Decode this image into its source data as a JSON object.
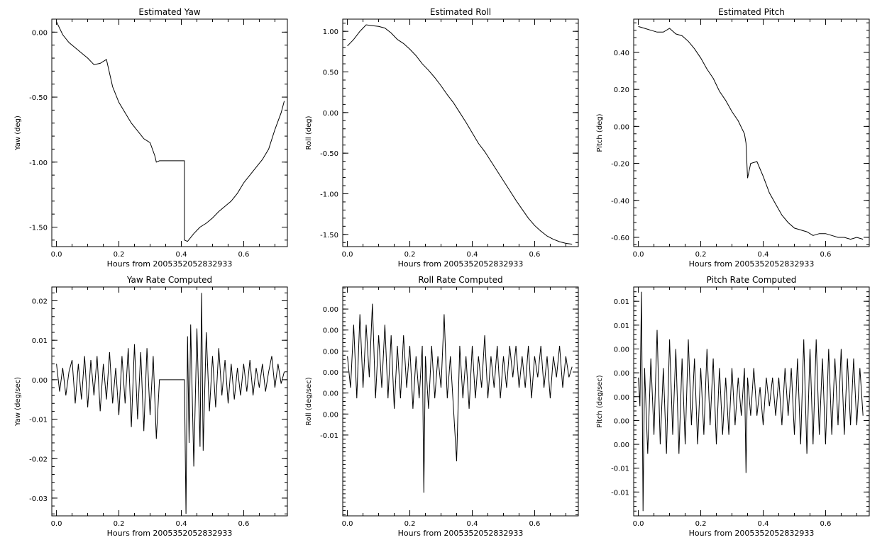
{
  "chart_data": [
    {
      "type": "line",
      "title": "Estimated Yaw",
      "xlabel": "Hours from 2005352052832933",
      "ylabel": "Yaw (deg)",
      "xlim": [
        -0.015,
        0.74
      ],
      "ylim": [
        -1.65,
        0.1
      ],
      "xticks": [
        0.0,
        0.2,
        0.4,
        0.6
      ],
      "xtick_labels": [
        "0.0",
        "0.2",
        "0.4",
        "0.6"
      ],
      "yticks": [
        0.0,
        -0.5,
        -1.0,
        -1.5
      ],
      "ytick_labels": [
        "0.00",
        "-0.50",
        "-1.00",
        "-1.50"
      ],
      "color": "#000000",
      "series": [
        {
          "x": [
            0.0,
            0.02,
            0.04,
            0.06,
            0.08,
            0.1,
            0.12,
            0.14,
            0.16,
            0.18,
            0.2,
            0.22,
            0.24,
            0.26,
            0.28,
            0.3,
            0.315,
            0.32,
            0.33,
            0.41,
            0.41,
            0.42,
            0.44,
            0.46,
            0.48,
            0.5,
            0.52,
            0.54,
            0.56,
            0.58,
            0.6,
            0.62,
            0.64,
            0.66,
            0.68,
            0.7,
            0.72,
            0.73
          ],
          "values": [
            0.08,
            -0.02,
            -0.08,
            -0.12,
            -0.16,
            -0.2,
            -0.25,
            -0.24,
            -0.21,
            -0.42,
            -0.54,
            -0.62,
            -0.7,
            -0.76,
            -0.82,
            -0.85,
            -0.95,
            -1.0,
            -0.99,
            -0.99,
            -1.6,
            -1.61,
            -1.55,
            -1.5,
            -1.47,
            -1.43,
            -1.38,
            -1.34,
            -1.3,
            -1.24,
            -1.16,
            -1.1,
            -1.04,
            -0.98,
            -0.9,
            -0.75,
            -0.62,
            -0.53
          ]
        }
      ]
    },
    {
      "type": "line",
      "title": "Estimated Roll",
      "xlabel": "Hours from 2005352052832933",
      "ylabel": "Roll (deg)",
      "xlim": [
        -0.015,
        0.74
      ],
      "ylim": [
        -1.65,
        1.15
      ],
      "xticks": [
        0.0,
        0.2,
        0.4,
        0.6
      ],
      "xtick_labels": [
        "0.0",
        "0.2",
        "0.4",
        "0.6"
      ],
      "yticks": [
        1.0,
        0.5,
        0.0,
        -0.5,
        -1.0,
        -1.5
      ],
      "ytick_labels": [
        "1.00",
        "0.50",
        "0.00",
        "-0.50",
        "-1.00",
        "-1.50"
      ],
      "color": "#000000",
      "series": [
        {
          "x": [
            0.0,
            0.02,
            0.04,
            0.06,
            0.08,
            0.1,
            0.12,
            0.14,
            0.16,
            0.18,
            0.2,
            0.22,
            0.24,
            0.26,
            0.28,
            0.3,
            0.32,
            0.34,
            0.36,
            0.38,
            0.4,
            0.42,
            0.44,
            0.46,
            0.48,
            0.5,
            0.52,
            0.54,
            0.56,
            0.58,
            0.6,
            0.62,
            0.64,
            0.66,
            0.68,
            0.7,
            0.72
          ],
          "values": [
            0.82,
            0.9,
            1.0,
            1.08,
            1.07,
            1.06,
            1.04,
            0.98,
            0.9,
            0.85,
            0.78,
            0.7,
            0.6,
            0.52,
            0.43,
            0.33,
            0.22,
            0.12,
            0.0,
            -0.12,
            -0.25,
            -0.38,
            -0.48,
            -0.6,
            -0.72,
            -0.84,
            -0.96,
            -1.08,
            -1.19,
            -1.3,
            -1.39,
            -1.46,
            -1.52,
            -1.56,
            -1.59,
            -1.61,
            -1.62
          ]
        }
      ]
    },
    {
      "type": "line",
      "title": "Estimated Pitch",
      "xlabel": "Hours from 2005352052832933",
      "ylabel": "Pitch (deg)",
      "xlim": [
        -0.015,
        0.74
      ],
      "ylim": [
        -0.65,
        0.58
      ],
      "xticks": [
        0.0,
        0.2,
        0.4,
        0.6
      ],
      "xtick_labels": [
        "0.0",
        "0.2",
        "0.4",
        "0.6"
      ],
      "yticks": [
        0.4,
        0.2,
        0.0,
        -0.2,
        -0.4,
        -0.6
      ],
      "ytick_labels": [
        "0.40",
        "0.20",
        "0.00",
        "-0.20",
        "-0.40",
        "-0.60"
      ],
      "color": "#000000",
      "series": [
        {
          "x": [
            0.0,
            0.02,
            0.04,
            0.06,
            0.08,
            0.1,
            0.12,
            0.14,
            0.16,
            0.18,
            0.2,
            0.22,
            0.24,
            0.26,
            0.28,
            0.3,
            0.32,
            0.34,
            0.345,
            0.35,
            0.36,
            0.38,
            0.4,
            0.42,
            0.44,
            0.46,
            0.48,
            0.5,
            0.52,
            0.54,
            0.56,
            0.58,
            0.6,
            0.62,
            0.64,
            0.66,
            0.68,
            0.7,
            0.72
          ],
          "values": [
            0.54,
            0.53,
            0.52,
            0.51,
            0.51,
            0.53,
            0.5,
            0.49,
            0.46,
            0.42,
            0.37,
            0.31,
            0.26,
            0.19,
            0.14,
            0.08,
            0.03,
            -0.04,
            -0.09,
            -0.28,
            -0.2,
            -0.19,
            -0.27,
            -0.36,
            -0.42,
            -0.48,
            -0.52,
            -0.55,
            -0.56,
            -0.57,
            -0.59,
            -0.58,
            -0.58,
            -0.59,
            -0.6,
            -0.6,
            -0.61,
            -0.6,
            -0.61
          ]
        }
      ]
    },
    {
      "type": "line",
      "title": "Yaw Rate Computed",
      "xlabel": "Hours from 2005352052832933",
      "ylabel": "Yaw (deg/sec)",
      "xlim": [
        -0.015,
        0.74
      ],
      "ylim": [
        -0.0345,
        0.0235
      ],
      "xticks": [
        0.0,
        0.2,
        0.4,
        0.6
      ],
      "xtick_labels": [
        "0.0",
        "0.2",
        "0.4",
        "0.6"
      ],
      "yticks": [
        0.02,
        0.01,
        0.0,
        -0.01,
        -0.02,
        -0.03
      ],
      "ytick_labels": [
        "0.02",
        "0.01",
        "0.00",
        "-0.01",
        "-0.02",
        "-0.03"
      ],
      "color": "#000000",
      "series": [
        {
          "x": [
            0.0,
            0.01,
            0.02,
            0.03,
            0.04,
            0.05,
            0.06,
            0.07,
            0.08,
            0.09,
            0.1,
            0.11,
            0.12,
            0.13,
            0.14,
            0.15,
            0.16,
            0.17,
            0.18,
            0.19,
            0.2,
            0.21,
            0.22,
            0.23,
            0.24,
            0.25,
            0.26,
            0.27,
            0.28,
            0.29,
            0.3,
            0.31,
            0.32,
            0.33,
            0.41,
            0.415,
            0.42,
            0.425,
            0.43,
            0.44,
            0.45,
            0.46,
            0.465,
            0.47,
            0.48,
            0.49,
            0.5,
            0.51,
            0.52,
            0.53,
            0.54,
            0.55,
            0.56,
            0.57,
            0.58,
            0.59,
            0.6,
            0.61,
            0.62,
            0.63,
            0.64,
            0.65,
            0.66,
            0.67,
            0.68,
            0.69,
            0.7,
            0.71,
            0.72,
            0.73
          ],
          "values": [
            0.004,
            -0.003,
            0.003,
            -0.004,
            0.002,
            0.005,
            -0.006,
            0.004,
            -0.005,
            0.006,
            -0.007,
            0.005,
            -0.004,
            0.006,
            -0.008,
            0.004,
            -0.005,
            0.007,
            -0.006,
            0.003,
            -0.009,
            0.006,
            -0.006,
            0.008,
            -0.012,
            0.009,
            -0.01,
            0.007,
            -0.013,
            0.008,
            -0.009,
            0.006,
            -0.015,
            0.0,
            0.0,
            -0.034,
            0.011,
            -0.016,
            0.014,
            -0.022,
            0.013,
            -0.017,
            0.022,
            -0.018,
            0.012,
            -0.008,
            0.006,
            -0.007,
            0.008,
            -0.004,
            0.005,
            -0.006,
            0.004,
            -0.005,
            0.003,
            -0.004,
            0.004,
            -0.003,
            0.005,
            -0.004,
            0.003,
            -0.002,
            0.004,
            -0.003,
            0.002,
            0.006,
            -0.002,
            0.004,
            -0.001,
            0.002
          ]
        }
      ]
    },
    {
      "type": "line",
      "title": "Roll Rate Computed",
      "xlabel": "Hours from 2005352052832933",
      "ylabel": "Roll (deg/sec)",
      "xlim": [
        -0.015,
        0.74
      ],
      "ylim": [
        -0.0142,
        0.0076
      ],
      "xticks": [
        0.0,
        0.2,
        0.4,
        0.6
      ],
      "xtick_labels": [
        "0.0",
        "0.2",
        "0.4",
        "0.6"
      ],
      "yticks": [
        0.0055,
        0.0035,
        0.0015,
        -0.0005,
        -0.0025,
        -0.0045,
        -0.0065
      ],
      "ytick_labels": [
        "0.00",
        "0.00",
        "0.00",
        "0.00",
        "0.00",
        "0.00",
        "-0.01"
      ],
      "color": "#000000",
      "series": [
        {
          "x": [
            0.0,
            0.01,
            0.02,
            0.03,
            0.04,
            0.05,
            0.06,
            0.07,
            0.08,
            0.09,
            0.1,
            0.11,
            0.12,
            0.13,
            0.14,
            0.15,
            0.16,
            0.17,
            0.18,
            0.19,
            0.2,
            0.21,
            0.22,
            0.23,
            0.24,
            0.245,
            0.25,
            0.26,
            0.27,
            0.28,
            0.29,
            0.3,
            0.31,
            0.32,
            0.33,
            0.34,
            0.35,
            0.36,
            0.37,
            0.38,
            0.39,
            0.4,
            0.41,
            0.42,
            0.43,
            0.44,
            0.45,
            0.46,
            0.47,
            0.48,
            0.49,
            0.5,
            0.51,
            0.52,
            0.53,
            0.54,
            0.55,
            0.56,
            0.57,
            0.58,
            0.59,
            0.6,
            0.61,
            0.62,
            0.63,
            0.64,
            0.65,
            0.66,
            0.67,
            0.68,
            0.69,
            0.7,
            0.71,
            0.72
          ],
          "values": [
            0.001,
            -0.002,
            0.004,
            -0.003,
            0.005,
            -0.002,
            0.004,
            -0.001,
            0.006,
            -0.003,
            0.003,
            -0.002,
            0.004,
            -0.003,
            0.003,
            -0.004,
            0.002,
            -0.003,
            0.003,
            -0.002,
            0.002,
            -0.004,
            0.001,
            -0.003,
            0.002,
            -0.012,
            0.001,
            -0.004,
            0.002,
            -0.003,
            0.001,
            -0.002,
            0.005,
            -0.003,
            0.001,
            -0.004,
            -0.009,
            0.002,
            -0.003,
            0.001,
            -0.004,
            0.002,
            -0.003,
            0.001,
            -0.002,
            0.003,
            -0.003,
            0.001,
            -0.002,
            0.002,
            -0.003,
            0.001,
            -0.002,
            0.002,
            -0.001,
            0.002,
            -0.002,
            0.001,
            -0.002,
            0.002,
            -0.003,
            0.001,
            -0.001,
            0.002,
            -0.002,
            0.001,
            -0.003,
            0.001,
            -0.001,
            0.002,
            -0.002,
            0.001,
            -0.001,
            0.0
          ]
        }
      ]
    },
    {
      "type": "line",
      "title": "Pitch Rate Computed",
      "xlabel": "Hours from 2005352052832933",
      "ylabel": "Pitch (deg/sec)",
      "xlim": [
        -0.015,
        0.74
      ],
      "ylim": [
        -0.0125,
        0.0115
      ],
      "xticks": [
        0.0,
        0.2,
        0.4,
        0.6
      ],
      "xtick_labels": [
        "0.0",
        "0.2",
        "0.4",
        "0.6"
      ],
      "yticks": [
        0.01,
        0.0075,
        0.005,
        0.0025,
        0.0,
        -0.0025,
        -0.005,
        -0.0075,
        -0.01
      ],
      "ytick_labels": [
        "0.01",
        "0.01",
        "0.00",
        "0.00",
        "0.00",
        "0.00",
        "0.00",
        "-0.01",
        "-0.01"
      ],
      "color": "#000000",
      "series": [
        {
          "x": [
            0.0,
            0.005,
            0.01,
            0.015,
            0.02,
            0.03,
            0.04,
            0.05,
            0.06,
            0.07,
            0.08,
            0.09,
            0.1,
            0.11,
            0.12,
            0.13,
            0.14,
            0.15,
            0.16,
            0.17,
            0.18,
            0.19,
            0.2,
            0.21,
            0.22,
            0.23,
            0.24,
            0.25,
            0.26,
            0.27,
            0.28,
            0.29,
            0.3,
            0.31,
            0.32,
            0.33,
            0.34,
            0.345,
            0.35,
            0.36,
            0.37,
            0.38,
            0.39,
            0.4,
            0.41,
            0.42,
            0.43,
            0.44,
            0.45,
            0.46,
            0.47,
            0.48,
            0.49,
            0.5,
            0.51,
            0.52,
            0.53,
            0.54,
            0.55,
            0.56,
            0.57,
            0.58,
            0.59,
            0.6,
            0.61,
            0.62,
            0.63,
            0.64,
            0.65,
            0.66,
            0.67,
            0.68,
            0.69,
            0.7,
            0.71,
            0.72
          ],
          "values": [
            0.002,
            -0.001,
            0.011,
            -0.012,
            0.003,
            -0.006,
            0.004,
            -0.004,
            0.007,
            -0.005,
            0.003,
            -0.006,
            0.006,
            -0.004,
            0.005,
            -0.006,
            0.004,
            -0.005,
            0.006,
            -0.003,
            0.004,
            -0.005,
            0.003,
            -0.004,
            0.005,
            -0.003,
            0.004,
            -0.005,
            0.003,
            -0.004,
            0.002,
            -0.004,
            0.003,
            -0.003,
            0.002,
            -0.002,
            0.003,
            -0.008,
            0.002,
            -0.002,
            0.003,
            -0.002,
            0.001,
            -0.003,
            0.002,
            -0.001,
            0.002,
            -0.002,
            0.002,
            -0.003,
            0.003,
            -0.002,
            0.003,
            -0.004,
            0.004,
            -0.005,
            0.006,
            -0.006,
            0.005,
            -0.005,
            0.006,
            -0.004,
            0.004,
            -0.005,
            0.005,
            -0.004,
            0.004,
            -0.003,
            0.005,
            -0.004,
            0.004,
            -0.003,
            0.004,
            -0.003,
            0.003,
            -0.002
          ]
        }
      ]
    }
  ]
}
